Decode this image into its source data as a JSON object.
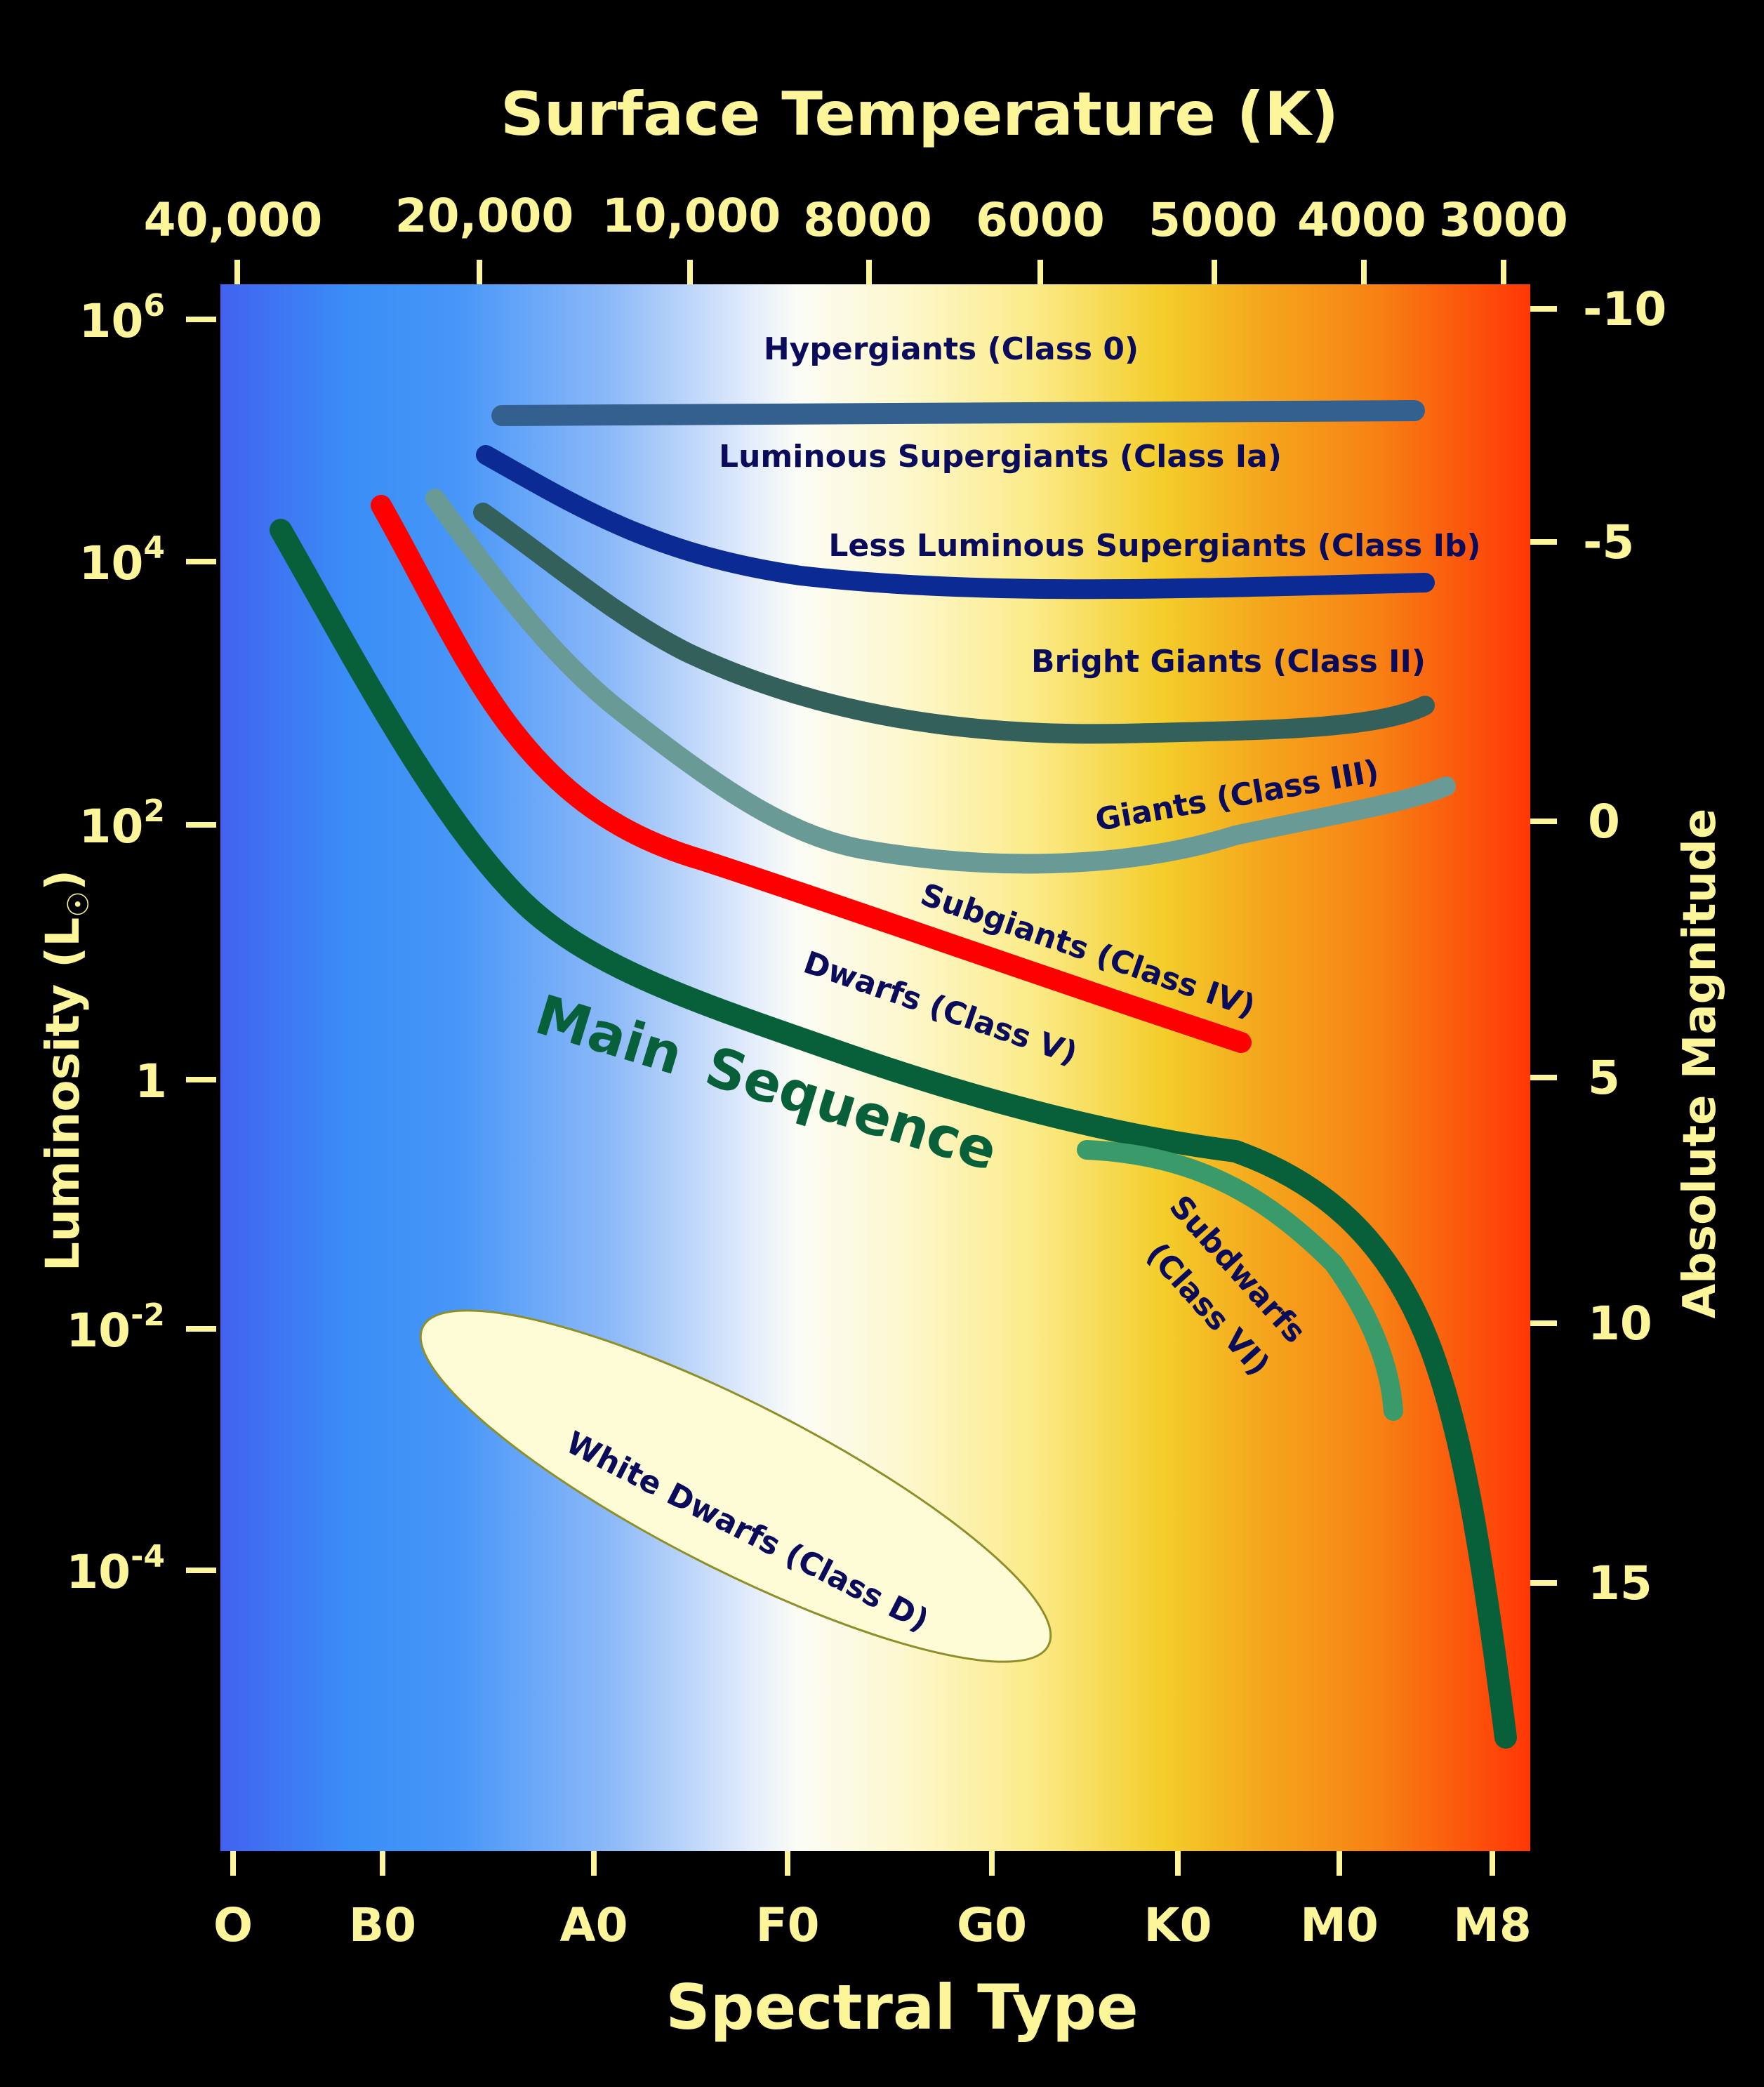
{
  "top_axis": {
    "title": "Surface Temperature (K)",
    "ticks": [
      "40,000",
      "20,000",
      "10,000",
      "8000",
      "6000",
      "5000",
      "4000",
      "3000"
    ]
  },
  "bottom_axis": {
    "title": "Spectral Type",
    "ticks": [
      "O",
      "B0",
      "A0",
      "F0",
      "G0",
      "K0",
      "M0",
      "M8"
    ]
  },
  "left_axis": {
    "title_main": "Luminosity (L",
    "title_sun": "☉",
    "title_close": ")",
    "ticks": [
      {
        "base": "10",
        "exp": "6"
      },
      {
        "base": "10",
        "exp": "4"
      },
      {
        "base": "10",
        "exp": "2"
      },
      {
        "base": "1",
        "exp": ""
      },
      {
        "base": "10",
        "exp": "-2"
      },
      {
        "base": "10",
        "exp": "-4"
      }
    ]
  },
  "right_axis": {
    "title": "Absolute Magnitude",
    "ticks": [
      "-10",
      "-5",
      "0",
      "5",
      "10",
      "15"
    ]
  },
  "regions": {
    "hypergiants": "Hypergiants (Class 0)",
    "luminous_supergiants": "Luminous Supergiants (Class Ia)",
    "less_luminous_supergiants": "Less Luminous Supergiants (Class Ib)",
    "bright_giants": "Bright Giants (Class II)",
    "giants": "Giants (Class III)",
    "subgiants": "Subgiants (Class IV)",
    "dwarfs": "Dwarfs (Class V)",
    "main_sequence_word1": "Main",
    "main_sequence_word2": "Sequence",
    "subdwarfs_line1": "Subdwarfs",
    "subdwarfs_line2": "(Class VI)",
    "white_dwarfs": "White Dwarfs (Class D)"
  },
  "colors": {
    "background": "#000000",
    "axis_text": "#fdf59a",
    "region_label": "#0b0b5c",
    "main_sequence": "#07603a",
    "subgiants": "#ff0000",
    "giants": "#6a9a96",
    "bright_giants": "#33605a",
    "less_luminous_supergiants": "#0b2a93",
    "luminous_supergiants": "#34608f",
    "hypergiants": "#a07bf2",
    "subdwarfs": "#3a9a6a",
    "white_dwarf_fill": "#fdfcd6"
  }
}
